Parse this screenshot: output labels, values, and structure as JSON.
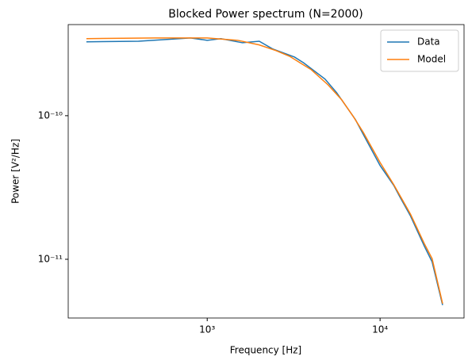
{
  "chart_data": {
    "type": "line",
    "title": "Blocked Power spectrum (N=2000)",
    "xlabel": "Frequency [Hz]",
    "ylabel": "Power [V²/Hz]",
    "xscale": "log",
    "yscale": "log",
    "xlim": [
      157,
      30600
    ],
    "ylim": [
      3.9e-12,
      4.31e-10
    ],
    "xticks": [
      {
        "value": 1000,
        "label": "10³"
      },
      {
        "value": 10000,
        "label": "10⁴"
      }
    ],
    "yticks": [
      {
        "value": 1e-11,
        "label": "10⁻¹¹"
      },
      {
        "value": 1e-10,
        "label": "10⁻¹⁰"
      }
    ],
    "legend": "upper right",
    "series": [
      {
        "name": "Data",
        "color": "#1f77b4",
        "x": [
          200,
          400,
          800,
          1000,
          1200,
          1600,
          2000,
          2400,
          3200,
          3600,
          4800,
          5600,
          7200,
          8000,
          10000,
          12000,
          13000,
          15000,
          18000,
          20000,
          23000
        ],
        "values": [
          3.27e-10,
          3.3e-10,
          3.48e-10,
          3.35e-10,
          3.44e-10,
          3.22e-10,
          3.3e-10,
          2.91e-10,
          2.56e-10,
          2.34e-10,
          1.8e-10,
          1.45e-10,
          9.4e-11,
          7.4e-11,
          4.5e-11,
          3.27e-11,
          2.73e-11,
          2e-11,
          1.24e-11,
          9.6e-12,
          4.8e-12
        ]
      },
      {
        "name": "Model",
        "color": "#ff7f0e",
        "x": [
          200,
          500,
          1000,
          1500,
          2000,
          2500,
          3000,
          4000,
          5000,
          6000,
          7000,
          8000,
          10000,
          12000,
          15000,
          18000,
          20000,
          23000
        ],
        "values": [
          3.44e-10,
          3.48e-10,
          3.48e-10,
          3.35e-10,
          3.11e-10,
          2.84e-10,
          2.59e-10,
          2.09e-10,
          1.64e-10,
          1.29e-10,
          9.87e-11,
          7.65e-11,
          4.72e-11,
          3.31e-11,
          2.06e-11,
          1.29e-11,
          1.01e-11,
          4.91e-12
        ]
      }
    ]
  }
}
